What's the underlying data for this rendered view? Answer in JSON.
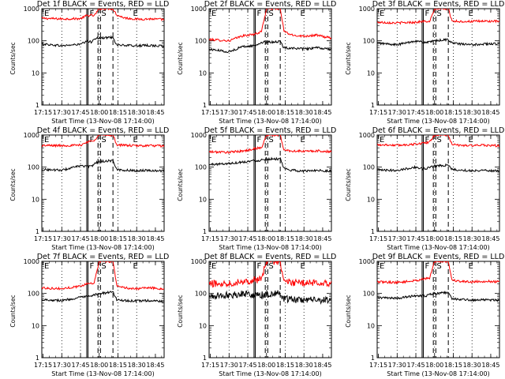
{
  "figure": {
    "title_template": "Det {n}f BLACK = Events, RED = LLD",
    "xlabel": "Start Time (13-Nov-08 17:14:00)",
    "ylabel": "Counts/sec",
    "x_tick_labels": [
      "17:15",
      "17:30",
      "17:45",
      "18:00",
      "18:15",
      "18:30",
      "18:45"
    ],
    "y_tick_labels": [
      "1",
      "10",
      "100",
      "1000"
    ],
    "marker_labels": [
      "F",
      "S",
      "E"
    ],
    "colors": {
      "events": "#000000",
      "lld": "#ff0000"
    }
  },
  "chart_data": [
    {
      "type": "line",
      "title": "Det 1f BLACK = Events, RED = LLD",
      "xlabel": "Start Time (13-Nov-08 17:14:00)",
      "ylabel": "Counts/sec",
      "x_range": [
        "17:14",
        "18:52"
      ],
      "y_scale": "log",
      "ylim": [
        1,
        1000
      ],
      "markers": {
        "F": [
          "17:50",
          "17:51"
        ],
        "S": [
          "17:59",
          "18:01",
          "18:11"
        ],
        "E": "18:29"
      },
      "series": [
        {
          "key": "lld",
          "color": "#ff0000",
          "x": [
            "17:14",
            "17:30",
            "17:45",
            "17:50",
            "17:54",
            "17:56",
            "18:00",
            "18:11",
            "18:14",
            "18:20",
            "18:30",
            "18:40",
            "18:52"
          ],
          "values": [
            500,
            480,
            490,
            610,
            620,
            600,
            1000,
            1000,
            640,
            520,
            470,
            480,
            460
          ]
        },
        {
          "key": "events",
          "color": "#000000",
          "x": [
            "17:14",
            "17:30",
            "17:45",
            "17:50",
            "17:54",
            "17:56",
            "18:00",
            "18:11",
            "18:14",
            "18:20",
            "18:30",
            "18:40",
            "18:52"
          ],
          "values": [
            80,
            70,
            78,
            95,
            92,
            120,
            120,
            130,
            75,
            72,
            70,
            72,
            68
          ]
        }
      ]
    },
    {
      "type": "line",
      "title": "Det 2f BLACK = Events, RED = LLD",
      "xlabel": "Start Time (13-Nov-08 17:14:00)",
      "ylabel": "Counts/sec",
      "x_range": [
        "17:14",
        "18:52"
      ],
      "y_scale": "log",
      "ylim": [
        1,
        1000
      ],
      "markers": {
        "F": [
          "17:50",
          "17:51"
        ],
        "S": [
          "17:59",
          "18:01",
          "18:11"
        ],
        "E": "18:29"
      },
      "series": [
        {
          "key": "lld",
          "color": "#ff0000",
          "x": [
            "17:14",
            "17:30",
            "17:40",
            "17:50",
            "17:54",
            "17:56",
            "18:00",
            "18:11",
            "18:14",
            "18:20",
            "18:30",
            "18:40",
            "18:52"
          ],
          "values": [
            110,
            100,
            140,
            160,
            180,
            200,
            1000,
            1000,
            200,
            150,
            140,
            150,
            120
          ]
        },
        {
          "key": "events",
          "color": "#000000",
          "x": [
            "17:14",
            "17:30",
            "17:40",
            "17:50",
            "17:54",
            "17:56",
            "18:00",
            "18:11",
            "18:14",
            "18:20",
            "18:30",
            "18:40",
            "18:52"
          ],
          "values": [
            55,
            45,
            65,
            70,
            80,
            90,
            90,
            95,
            60,
            60,
            55,
            60,
            55
          ]
        }
      ]
    },
    {
      "type": "line",
      "title": "Det 3f BLACK = Events, RED = LLD",
      "xlabel": "Start Time (13-Nov-08 17:14:00)",
      "ylabel": "Counts/sec",
      "x_range": [
        "17:14",
        "18:52"
      ],
      "y_scale": "log",
      "ylim": [
        1,
        1000
      ],
      "markers": {
        "F": [
          "17:50",
          "17:51"
        ],
        "S": [
          "17:59",
          "18:01",
          "18:11"
        ],
        "E": "18:29"
      },
      "series": [
        {
          "key": "lld",
          "color": "#ff0000",
          "x": [
            "17:14",
            "17:30",
            "17:45",
            "17:50",
            "17:54",
            "17:56",
            "18:00",
            "18:11",
            "18:14",
            "18:20",
            "18:30",
            "18:40",
            "18:52"
          ],
          "values": [
            380,
            360,
            380,
            400,
            400,
            380,
            1000,
            1000,
            420,
            400,
            400,
            410,
            400
          ]
        },
        {
          "key": "events",
          "color": "#000000",
          "x": [
            "17:14",
            "17:30",
            "17:45",
            "17:50",
            "17:54",
            "17:56",
            "18:00",
            "18:11",
            "18:14",
            "18:20",
            "18:30",
            "18:40",
            "18:52"
          ],
          "values": [
            85,
            75,
            100,
            90,
            90,
            90,
            100,
            110,
            85,
            80,
            75,
            80,
            80
          ]
        }
      ]
    },
    {
      "type": "line",
      "title": "Det 4f BLACK = Events, RED = LLD",
      "xlabel": "Start Time (13-Nov-08 17:14:00)",
      "ylabel": "Counts/sec",
      "x_range": [
        "17:14",
        "18:52"
      ],
      "y_scale": "log",
      "ylim": [
        1,
        1000
      ],
      "markers": {
        "F": [
          "17:50",
          "17:51"
        ],
        "S": [
          "17:59",
          "18:01",
          "18:11"
        ],
        "E": "18:29"
      },
      "series": [
        {
          "key": "lld",
          "color": "#ff0000",
          "x": [
            "17:14",
            "17:30",
            "17:45",
            "17:50",
            "17:54",
            "17:56",
            "18:00",
            "18:11",
            "18:14",
            "18:20",
            "18:30",
            "18:40",
            "18:52"
          ],
          "values": [
            470,
            470,
            480,
            600,
            650,
            700,
            1000,
            1000,
            500,
            480,
            460,
            470,
            450
          ]
        },
        {
          "key": "events",
          "color": "#000000",
          "x": [
            "17:14",
            "17:30",
            "17:45",
            "17:50",
            "17:54",
            "17:56",
            "18:00",
            "18:11",
            "18:14",
            "18:20",
            "18:30",
            "18:40",
            "18:52"
          ],
          "values": [
            85,
            80,
            110,
            105,
            105,
            130,
            150,
            160,
            85,
            80,
            78,
            80,
            75
          ]
        }
      ]
    },
    {
      "type": "line",
      "title": "Det 5f BLACK = Events, RED = LLD",
      "xlabel": "Start Time (13-Nov-08 17:14:00)",
      "ylabel": "Counts/sec",
      "x_range": [
        "17:14",
        "18:52"
      ],
      "y_scale": "log",
      "ylim": [
        1,
        1000
      ],
      "markers": {
        "F": [
          "17:50",
          "17:51"
        ],
        "S": [
          "17:59",
          "18:01",
          "18:11"
        ],
        "E": "18:29"
      },
      "series": [
        {
          "key": "lld",
          "color": "#ff0000",
          "x": [
            "17:14",
            "17:30",
            "17:45",
            "17:50",
            "17:54",
            "17:56",
            "18:00",
            "18:11",
            "18:14",
            "18:20",
            "18:30",
            "18:40",
            "18:52"
          ],
          "values": [
            300,
            290,
            330,
            380,
            390,
            400,
            1000,
            1000,
            340,
            320,
            310,
            320,
            300
          ]
        },
        {
          "key": "events",
          "color": "#000000",
          "x": [
            "17:14",
            "17:30",
            "17:45",
            "17:50",
            "17:54",
            "17:56",
            "18:00",
            "18:11",
            "18:14",
            "18:20",
            "18:30",
            "18:40",
            "18:52"
          ],
          "values": [
            120,
            130,
            150,
            160,
            160,
            170,
            180,
            180,
            90,
            80,
            75,
            80,
            75
          ]
        }
      ]
    },
    {
      "type": "line",
      "title": "Det 6f BLACK = Events, RED = LLD",
      "xlabel": "Start Time (13-Nov-08 17:14:00)",
      "ylabel": "Counts/sec",
      "x_range": [
        "17:14",
        "18:52"
      ],
      "y_scale": "log",
      "ylim": [
        1,
        1000
      ],
      "markers": {
        "F": [
          "17:50",
          "17:51"
        ],
        "S": [
          "17:59",
          "18:01",
          "18:11"
        ],
        "E": "18:29"
      },
      "series": [
        {
          "key": "lld",
          "color": "#ff0000",
          "x": [
            "17:14",
            "17:30",
            "17:45",
            "17:50",
            "17:54",
            "17:56",
            "18:00",
            "18:11",
            "18:14",
            "18:20",
            "18:30",
            "18:40",
            "18:52"
          ],
          "values": [
            500,
            480,
            520,
            560,
            580,
            600,
            1000,
            1000,
            500,
            480,
            470,
            480,
            460
          ]
        },
        {
          "key": "events",
          "color": "#000000",
          "x": [
            "17:14",
            "17:30",
            "17:45",
            "17:50",
            "17:54",
            "17:56",
            "18:00",
            "18:11",
            "18:14",
            "18:20",
            "18:30",
            "18:40",
            "18:52"
          ],
          "values": [
            80,
            80,
            100,
            90,
            90,
            100,
            110,
            115,
            85,
            80,
            78,
            80,
            75
          ]
        }
      ]
    },
    {
      "type": "line",
      "title": "Det 7f BLACK = Events, RED = LLD",
      "xlabel": "Start Time (13-Nov-08 17:14:00)",
      "ylabel": "Counts/sec",
      "x_range": [
        "17:14",
        "18:52"
      ],
      "y_scale": "log",
      "ylim": [
        1,
        1000
      ],
      "markers": {
        "F": [
          "17:50",
          "17:51"
        ],
        "S": [
          "17:59",
          "18:01",
          "18:11"
        ],
        "E": "18:29"
      },
      "series": [
        {
          "key": "lld",
          "color": "#ff0000",
          "x": [
            "17:14",
            "17:30",
            "17:45",
            "17:50",
            "17:54",
            "17:56",
            "18:00",
            "18:11",
            "18:14",
            "18:20",
            "18:30",
            "18:40",
            "18:52"
          ],
          "values": [
            150,
            140,
            170,
            200,
            210,
            220,
            1000,
            1000,
            180,
            150,
            140,
            150,
            140
          ]
        },
        {
          "key": "events",
          "color": "#000000",
          "x": [
            "17:14",
            "17:30",
            "17:45",
            "17:50",
            "17:54",
            "17:56",
            "18:00",
            "18:11",
            "18:14",
            "18:20",
            "18:30",
            "18:40",
            "18:52"
          ],
          "values": [
            65,
            60,
            75,
            80,
            80,
            90,
            100,
            110,
            65,
            60,
            58,
            60,
            55
          ]
        }
      ]
    },
    {
      "type": "line",
      "title": "Det 8f BLACK = Events, RED = LLD",
      "xlabel": "Start Time (13-Nov-08 17:14:00)",
      "ylabel": "Counts/sec",
      "x_range": [
        "17:14",
        "18:52"
      ],
      "y_scale": "log",
      "ylim": [
        1,
        1000
      ],
      "markers": {
        "F": [
          "17:50",
          "17:51"
        ],
        "S": [
          "17:59",
          "18:01",
          "18:11"
        ],
        "E": "18:29"
      },
      "series": [
        {
          "key": "lld",
          "color": "#ff0000",
          "x": [
            "17:14",
            "17:30",
            "17:45",
            "17:50",
            "17:54",
            "17:56",
            "18:00",
            "18:11",
            "18:14",
            "18:20",
            "18:30",
            "18:40",
            "18:52"
          ],
          "values": [
            200,
            210,
            250,
            260,
            270,
            280,
            1000,
            1000,
            240,
            220,
            210,
            220,
            210
          ]
        },
        {
          "key": "events",
          "color": "#000000",
          "x": [
            "17:14",
            "17:30",
            "17:45",
            "17:50",
            "17:54",
            "17:56",
            "18:00",
            "18:11",
            "18:14",
            "18:20",
            "18:30",
            "18:40",
            "18:52"
          ],
          "values": [
            80,
            90,
            100,
            90,
            85,
            90,
            95,
            100,
            70,
            65,
            62,
            64,
            60
          ]
        }
      ]
    },
    {
      "type": "line",
      "title": "Det 9f BLACK = Events, RED = LLD",
      "xlabel": "Start Time (13-Nov-08 17:14:00)",
      "ylabel": "Counts/sec",
      "x_range": [
        "17:14",
        "18:52"
      ],
      "y_scale": "log",
      "ylim": [
        1,
        1000
      ],
      "markers": {
        "F": [
          "17:50",
          "17:51"
        ],
        "S": [
          "17:59",
          "18:01",
          "18:11"
        ],
        "E": "18:29"
      },
      "series": [
        {
          "key": "lld",
          "color": "#ff0000",
          "x": [
            "17:14",
            "17:30",
            "17:45",
            "17:50",
            "17:54",
            "17:56",
            "18:00",
            "18:11",
            "18:14",
            "18:20",
            "18:30",
            "18:40",
            "18:52"
          ],
          "values": [
            230,
            220,
            250,
            280,
            290,
            300,
            1000,
            1000,
            260,
            240,
            230,
            240,
            230
          ]
        },
        {
          "key": "events",
          "color": "#000000",
          "x": [
            "17:14",
            "17:30",
            "17:45",
            "17:50",
            "17:54",
            "17:56",
            "18:00",
            "18:11",
            "18:14",
            "18:20",
            "18:30",
            "18:40",
            "18:52"
          ],
          "values": [
            75,
            70,
            85,
            85,
            85,
            95,
            100,
            105,
            70,
            65,
            62,
            64,
            60
          ]
        }
      ]
    }
  ]
}
